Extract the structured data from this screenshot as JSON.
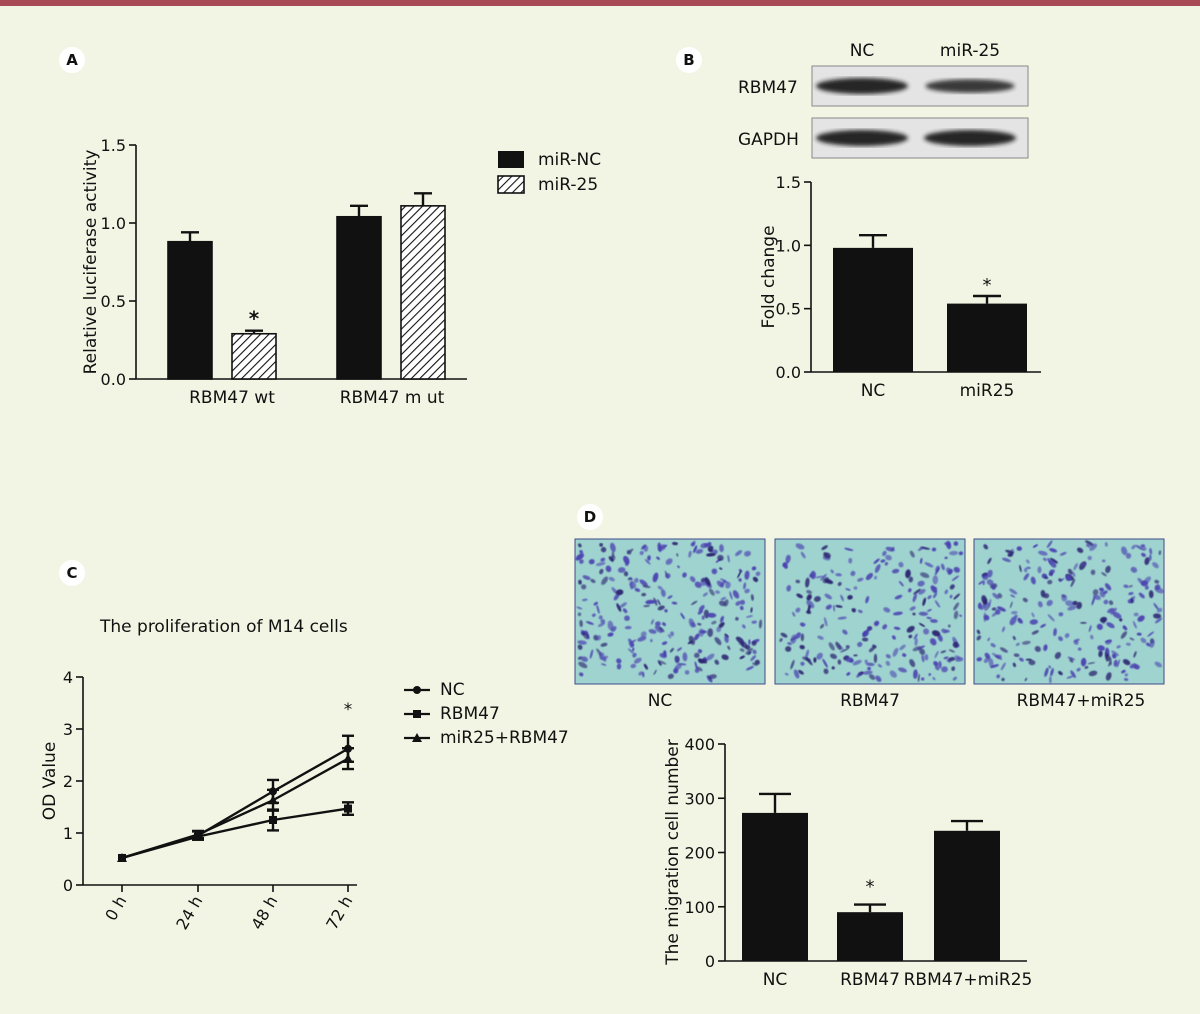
{
  "colors": {
    "background": "#f3f5e4",
    "top_rule": "#a84a55",
    "bar": "#111111",
    "letter_badge": "#ffffff",
    "micrograph_bg": "#9fd3cf",
    "micrograph_cells": "#3a2f95"
  },
  "panels": {
    "a": {
      "letter": "A"
    },
    "b": {
      "letter": "B"
    },
    "c": {
      "letter": "C"
    },
    "d": {
      "letter": "D"
    }
  },
  "western_blot": {
    "lanes": [
      "NC",
      "miR-25"
    ],
    "rows": [
      {
        "label": "RBM47",
        "intensities": [
          1.0,
          0.75
        ]
      },
      {
        "label": "GAPDH",
        "intensities": [
          1.0,
          1.0
        ]
      }
    ]
  },
  "micrographs": {
    "labels": [
      "NC",
      "RBM47",
      "RBM47+miR25"
    ],
    "relative_density": [
      1.0,
      0.85,
      0.9
    ]
  },
  "chart_data": [
    {
      "id": "a",
      "type": "bar",
      "title": "",
      "xlabel": "",
      "ylabel": "Relative luciferase activity",
      "categories": [
        "RBM47 wt",
        "RBM47 m ut"
      ],
      "series": [
        {
          "name": "miR-NC",
          "values": [
            0.88,
            1.04
          ],
          "errors": [
            0.06,
            0.07
          ],
          "pattern": "solid"
        },
        {
          "name": "miR-25",
          "values": [
            0.29,
            1.11
          ],
          "errors": [
            0.02,
            0.08
          ],
          "pattern": "hatched"
        }
      ],
      "significance": [
        {
          "category": 0,
          "series": 1,
          "mark": "*"
        }
      ],
      "ylim": [
        0,
        1.5
      ],
      "yticks": [
        "0.0",
        "0.5",
        "1.0",
        "1.5"
      ],
      "legend_position": "right"
    },
    {
      "id": "b",
      "type": "bar",
      "title": "",
      "xlabel": "",
      "ylabel": "Fold change",
      "categories": [
        "NC",
        "miR25"
      ],
      "values": [
        0.98,
        0.54
      ],
      "errors": [
        0.1,
        0.06
      ],
      "significance": [
        {
          "index": 1,
          "mark": "*"
        }
      ],
      "ylim": [
        0,
        1.5
      ],
      "yticks": [
        "0.0",
        "0.5",
        "1.0",
        "1.5"
      ]
    },
    {
      "id": "c",
      "type": "line",
      "title": "The proliferation of M14 cells",
      "xlabel": "",
      "ylabel": "OD Value",
      "categories": [
        "0 h",
        "24 h",
        "48 h",
        "72 h"
      ],
      "series": [
        {
          "name": "NC",
          "marker": "circle",
          "values": [
            0.52,
            0.95,
            1.8,
            2.62
          ],
          "errors": [
            0.05,
            0.08,
            0.22,
            0.25
          ]
        },
        {
          "name": "RBM47",
          "marker": "square",
          "values": [
            0.52,
            0.93,
            1.25,
            1.47
          ],
          "errors": [
            0.05,
            0.06,
            0.2,
            0.12
          ]
        },
        {
          "name": "miR25+RBM47",
          "marker": "triangle",
          "values": [
            0.52,
            0.97,
            1.63,
            2.43
          ],
          "errors": [
            0.05,
            0.07,
            0.2,
            0.2
          ]
        }
      ],
      "significance": [
        {
          "category": 3,
          "mark": "*"
        }
      ],
      "ylim": [
        0,
        4
      ],
      "yticks": [
        "0",
        "1",
        "2",
        "3",
        "4"
      ],
      "legend_position": "right"
    },
    {
      "id": "d",
      "type": "bar",
      "title": "",
      "xlabel": "",
      "ylabel": "The migration cell number",
      "categories": [
        "NC",
        "RBM47",
        "RBM47+miR25"
      ],
      "values": [
        273,
        90,
        240
      ],
      "errors": [
        35,
        14,
        18
      ],
      "significance": [
        {
          "index": 1,
          "mark": "*"
        }
      ],
      "ylim": [
        0,
        400
      ],
      "yticks": [
        "0",
        "100",
        "200",
        "300",
        "400"
      ]
    }
  ]
}
